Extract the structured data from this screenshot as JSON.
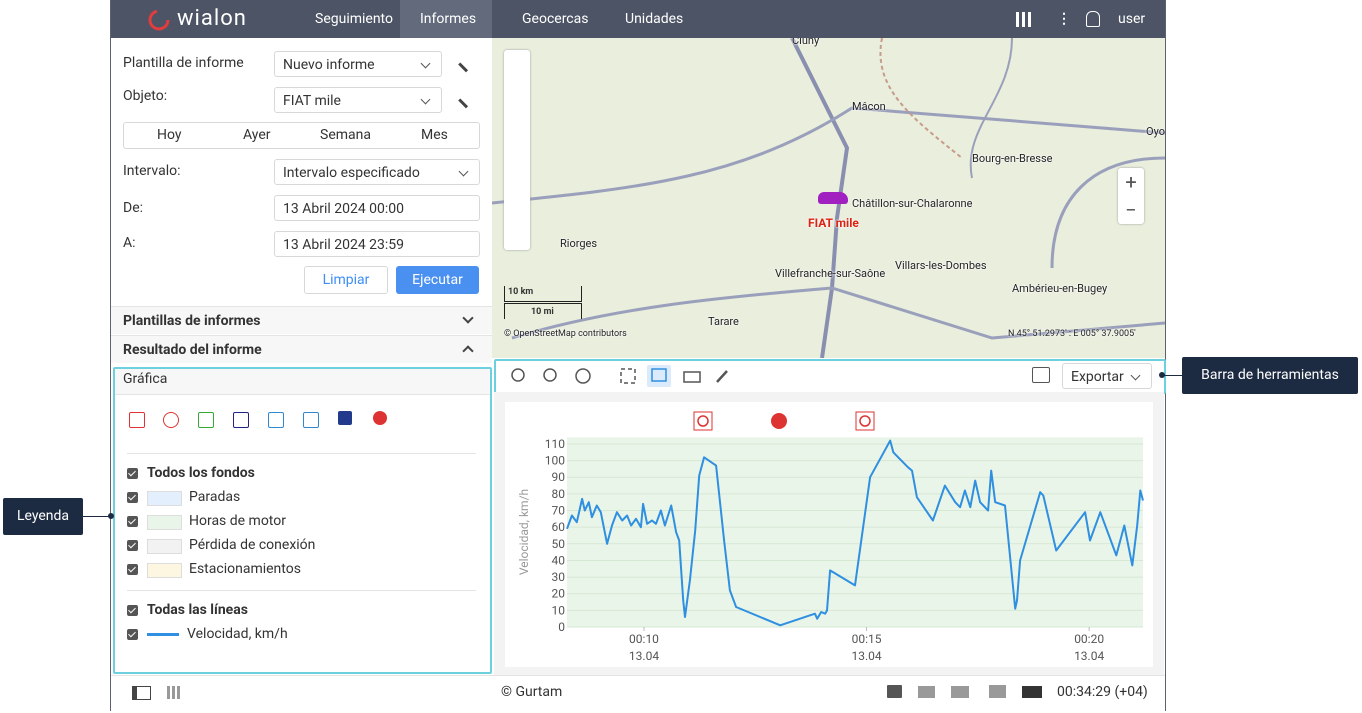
{
  "header": {
    "logo": "wialon",
    "nav": [
      "Seguimiento",
      "Informes",
      "Geocercas",
      "Unidades"
    ],
    "user": "user"
  },
  "form": {
    "template_label": "Plantilla de informe",
    "template_value": "Nuevo informe",
    "object_label": "Objeto:",
    "object_value": "FIAT mile",
    "periods": [
      "Hoy",
      "Ayer",
      "Semana",
      "Mes"
    ],
    "interval_label": "Intervalo:",
    "interval_value": "Intervalo especificado",
    "from_label": "De:",
    "from_value": "13 Abril 2024 00:00",
    "to_label": "A:",
    "to_value": "13 Abril 2024 23:59",
    "buttons": [
      "Limpiar",
      "Ejecutar"
    ]
  },
  "sections": [
    "Plantillas de informes",
    "Resultado del informe"
  ],
  "result_tab": "Gráfica",
  "legend": {
    "backgrounds_title": "Todos los fondos",
    "backgrounds": [
      {
        "name": "Paradas",
        "color": "#e3effc"
      },
      {
        "name": "Horas de motor",
        "color": "#eaf5e9"
      },
      {
        "name": "Pérdida de conexión",
        "color": "#f2f2f2"
      },
      {
        "name": "Estacionamientos",
        "color": "#fdf6e0"
      }
    ],
    "lines_title": "Todas las líneas"
  },
  "map": {
    "labels": [
      "Cluny",
      "Mâcon",
      "Bourg-en-Bresse",
      "Oyo",
      "Châtillon-sur-Chalaronne",
      "Riorges",
      "Villefranche-sur-Saône",
      "Villars-les-Dombes",
      "Ambérieu-en-Bugey",
      "Tarare"
    ],
    "unit": "FIAT mile",
    "scale": [
      "10 km",
      "10 mi"
    ],
    "attribution": "© OpenStreetMap contributors",
    "coords": "N 45° 51.2973' : E 005° 37.9005'"
  },
  "toolbar": {
    "export": "Exportar"
  },
  "chart_data": {
    "type": "line",
    "y_label": "Velocidad, km/h",
    "x": [
      8.27,
      8.38,
      8.49,
      8.61,
      8.67,
      8.76,
      8.83,
      8.94,
      9.03,
      9.17,
      9.28,
      9.39,
      9.51,
      9.62,
      9.71,
      9.82,
      9.93,
      9.98,
      10.07,
      10.18,
      10.27,
      10.38,
      10.47,
      10.61,
      10.72,
      10.79,
      10.88,
      10.92,
      11.03,
      11.15,
      11.24,
      11.35,
      11.62,
      11.8,
      11.93,
      12.07,
      13.06,
      13.84,
      13.89,
      13.98,
      14.07,
      14.11,
      14.18,
      14.74,
      15.08,
      15.53,
      15.6,
      15.71,
      15.82,
      15.93,
      16.02,
      16.13,
      16.49,
      16.76,
      16.99,
      17.1,
      17.21,
      17.33,
      17.44,
      17.55,
      17.73,
      17.8,
      17.89,
      18.11,
      18.34,
      18.38,
      18.45,
      18.9,
      18.97,
      19.26,
      19.91,
      20.02,
      20.25,
      20.61,
      20.79,
      20.97,
      21.08,
      21.15,
      21.21
    ],
    "series": [
      {
        "name": "Velocidad, km/h",
        "color": "#2f8fe0",
        "values": [
          59,
          67,
          63,
          77,
          70,
          75,
          66,
          73,
          69,
          50,
          61,
          69,
          64,
          67,
          61,
          65,
          60,
          74,
          62,
          64,
          62,
          70,
          61,
          73,
          57,
          52,
          16,
          6,
          28,
          58,
          91,
          102,
          97,
          52,
          22,
          12,
          1,
          8,
          5,
          9,
          8,
          10,
          34,
          25,
          90,
          112,
          105,
          102,
          99,
          96,
          94,
          78,
          64,
          85,
          75,
          72,
          82,
          72,
          88,
          75,
          70,
          94,
          75,
          73,
          11,
          16,
          40,
          81,
          79,
          46,
          69,
          52,
          69,
          43,
          61,
          37,
          61,
          82,
          76
        ]
      }
    ],
    "xlim": [
      8.27,
      21.21
    ],
    "ylim": [
      0,
      114
    ],
    "xticks": [
      {
        "value": 10,
        "label": "00:10",
        "date": "13.04"
      },
      {
        "value": 15,
        "label": "00:15",
        "date": "13.04"
      },
      {
        "value": 20,
        "label": "00:20",
        "date": "13.04"
      }
    ],
    "yticks": [
      0,
      10,
      20,
      30,
      40,
      50,
      60,
      70,
      80,
      90,
      100,
      110
    ],
    "grid": true,
    "background": "#eaf5e9"
  },
  "footer": {
    "copyright": "© Gurtam",
    "time": "00:34:29 (+04)"
  },
  "callouts": [
    "Leyenda",
    "Barra de herramientas"
  ]
}
